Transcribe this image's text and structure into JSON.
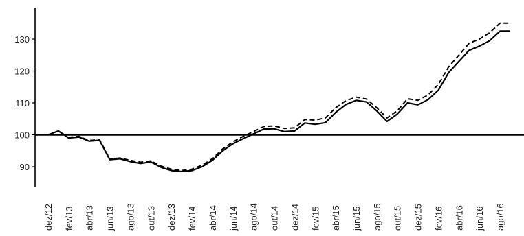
{
  "chart_data": {
    "type": "line",
    "title": "",
    "xlabel": "",
    "ylabel": "",
    "ylim": [
      83,
      140
    ],
    "yticks": [
      90,
      100,
      110,
      120,
      130
    ],
    "reference_line": 100,
    "grid": false,
    "legend": "none",
    "x_tick_labels": [
      "dez/12",
      "fev/13",
      "abr/13",
      "jun/13",
      "ago/13",
      "out/13",
      "dez/13",
      "fev/14",
      "abr/14",
      "jun/14",
      "ago/14",
      "out/14",
      "dez/14",
      "fev/15",
      "abr/15",
      "jun/15",
      "ago/15",
      "out/15",
      "dez/15",
      "fev/16",
      "abr/16",
      "jun/16",
      "ago/16"
    ],
    "x": [
      "dez/12",
      "jan/13",
      "fev/13",
      "mar/13",
      "abr/13",
      "mai/13",
      "jun/13",
      "jul/13",
      "ago/13",
      "set/13",
      "out/13",
      "nov/13",
      "dez/13",
      "jan/14",
      "fev/14",
      "mar/14",
      "abr/14",
      "mai/14",
      "jun/14",
      "jul/14",
      "ago/14",
      "set/14",
      "out/14",
      "nov/14",
      "dez/14",
      "jan/15",
      "fev/15",
      "mar/15",
      "abr/15",
      "mai/15",
      "jun/15",
      "jul/15",
      "ago/15",
      "set/15",
      "out/15",
      "nov/15",
      "dez/15",
      "jan/16",
      "fev/16",
      "mar/16",
      "abr/16",
      "mai/16",
      "jun/16",
      "jul/16",
      "ago/16",
      "set/16"
    ],
    "series": [
      {
        "style": "solid",
        "color": "#000000",
        "values": [
          100,
          101.2,
          99,
          99.3,
          98,
          98.3,
          92.2,
          92.5,
          91.6,
          91,
          91.5,
          89.8,
          88.8,
          88.5,
          88.8,
          90,
          92,
          95,
          97.2,
          98.8,
          100.3,
          101.8,
          101.9,
          101,
          101.2,
          103.7,
          103.3,
          103.8,
          107,
          109.5,
          110.8,
          110.3,
          107.5,
          104.2,
          106.5,
          110,
          109.4,
          111,
          114,
          119.5,
          123,
          126.5,
          127.8,
          129.5,
          132.5,
          132.5
        ]
      },
      {
        "style": "dashed",
        "color": "#000000",
        "values": [
          100,
          101.2,
          99.2,
          99.5,
          98.2,
          98.5,
          92.4,
          92.7,
          92,
          91.4,
          91.8,
          90.2,
          89.2,
          88.8,
          89.2,
          90.5,
          92.5,
          95.6,
          97.8,
          99.5,
          101,
          102.6,
          102.8,
          102,
          102.2,
          104.8,
          104.6,
          105.3,
          108.5,
          110.7,
          111.8,
          111.2,
          108.5,
          105.3,
          107.5,
          111.3,
          110.8,
          112.5,
          115.8,
          121.3,
          125,
          128.7,
          130,
          132,
          135,
          135
        ]
      }
    ]
  }
}
